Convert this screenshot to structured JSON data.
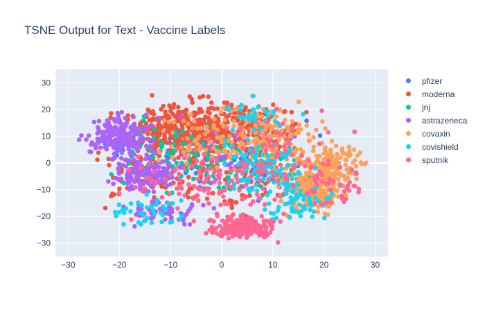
{
  "chart_data": {
    "type": "scatter",
    "title": "TSNE Output for Text - Vaccine Labels",
    "xlabel": "",
    "ylabel": "",
    "xlim": [
      -32.5,
      32.5
    ],
    "ylim": [
      -35,
      35
    ],
    "xticks": [
      -30,
      -20,
      -10,
      0,
      10,
      20,
      30
    ],
    "yticks": [
      -30,
      -20,
      -10,
      0,
      10,
      20,
      30
    ],
    "grid": true,
    "legend_position": "top-right",
    "plot_background": "#e5ecf6",
    "series": [
      {
        "name": "pfizer",
        "color": "#636efa",
        "clusters": [
          {
            "cx": -12,
            "cy": 8,
            "sx": 7,
            "sy": 6,
            "n": 70
          },
          {
            "cx": 2,
            "cy": 3,
            "sx": 9,
            "sy": 9,
            "n": 70
          }
        ]
      },
      {
        "name": "moderna",
        "color": "#ef553b",
        "clusters": [
          {
            "cx": -10,
            "cy": 13,
            "sx": 6,
            "sy": 6,
            "n": 220
          },
          {
            "cx": -2,
            "cy": 12,
            "sx": 7,
            "sy": 7,
            "n": 200
          },
          {
            "cx": 6,
            "cy": 12,
            "sx": 6,
            "sy": 6,
            "n": 130
          },
          {
            "cx": -16,
            "cy": -5,
            "sx": 6,
            "sy": 6,
            "n": 50
          },
          {
            "cx": 2,
            "cy": -5,
            "sx": 10,
            "sy": 9,
            "n": 90
          }
        ]
      },
      {
        "name": "jnj",
        "color": "#00cc96",
        "clusters": [
          {
            "cx": -8,
            "cy": 3,
            "sx": 8,
            "sy": 7,
            "n": 90
          },
          {
            "cx": 6,
            "cy": 0,
            "sx": 8,
            "sy": 8,
            "n": 60
          }
        ]
      },
      {
        "name": "astrazeneca",
        "color": "#ab63fa",
        "clusters": [
          {
            "cx": -20,
            "cy": 10,
            "sx": 4,
            "sy": 5,
            "n": 190
          },
          {
            "cx": -15,
            "cy": -4,
            "sx": 4,
            "sy": 4,
            "n": 150
          },
          {
            "cx": -11,
            "cy": -18,
            "sx": 5,
            "sy": 3,
            "n": 60
          },
          {
            "cx": 3,
            "cy": 2,
            "sx": 9,
            "sy": 9,
            "n": 40
          }
        ]
      },
      {
        "name": "covaxin",
        "color": "#ffa15a",
        "clusters": [
          {
            "cx": 18,
            "cy": -10,
            "sx": 4,
            "sy": 5,
            "n": 230
          },
          {
            "cx": 22,
            "cy": 0,
            "sx": 4,
            "sy": 4,
            "n": 120
          },
          {
            "cx": 10,
            "cy": 8,
            "sx": 7,
            "sy": 8,
            "n": 140
          },
          {
            "cx": -2,
            "cy": 10,
            "sx": 8,
            "sy": 8,
            "n": 90
          }
        ]
      },
      {
        "name": "covishield",
        "color": "#19d3f3",
        "clusters": [
          {
            "cx": 8,
            "cy": -2,
            "sx": 5,
            "sy": 7,
            "n": 110
          },
          {
            "cx": 15,
            "cy": -14,
            "sx": 4,
            "sy": 5,
            "n": 60
          },
          {
            "cx": -14,
            "cy": -18,
            "sx": 5,
            "sy": 4,
            "n": 40
          },
          {
            "cx": 6,
            "cy": 18,
            "sx": 5,
            "sy": 4,
            "n": 30
          }
        ]
      },
      {
        "name": "sputnik",
        "color": "#ff6692",
        "clusters": [
          {
            "cx": 4,
            "cy": -24,
            "sx": 4,
            "sy": 2.5,
            "n": 220
          },
          {
            "cx": -3,
            "cy": -8,
            "sx": 10,
            "sy": 8,
            "n": 110
          },
          {
            "cx": 10,
            "cy": 4,
            "sx": 8,
            "sy": 8,
            "n": 70
          },
          {
            "cx": 22,
            "cy": -8,
            "sx": 4,
            "sy": 5,
            "n": 40
          }
        ]
      }
    ]
  }
}
